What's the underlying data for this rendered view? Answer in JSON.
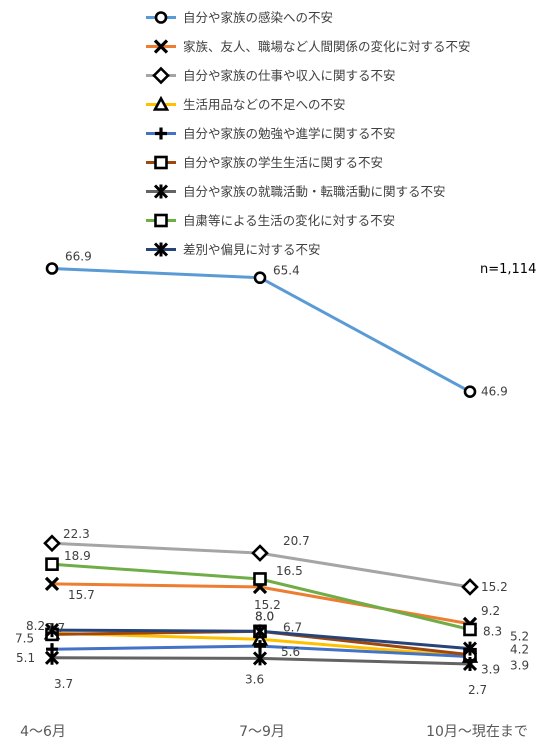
{
  "chart_data": {
    "type": "line",
    "categories": [
      "4～6月",
      "7～9月",
      "10月～現在まで"
    ],
    "note": "n=1,114",
    "series": [
      {
        "name": "自分や家族の感染への不安",
        "values": [
          66.9,
          65.4,
          46.9
        ],
        "color": "#5B9BD5",
        "marker": "circle"
      },
      {
        "name": "家族、友人、職場など人間関係の変化に対する不安",
        "values": [
          15.7,
          15.2,
          9.2
        ],
        "color": "#ED7D31",
        "marker": "x"
      },
      {
        "name": "自分や家族の仕事や収入に関する不安",
        "values": [
          22.3,
          20.7,
          15.2
        ],
        "color": "#A5A5A5",
        "marker": "diamond"
      },
      {
        "name": "生活用品などの不足への不安",
        "values": [
          7.7,
          6.7,
          3.9
        ],
        "color": "#FFC000",
        "marker": "triangle"
      },
      {
        "name": "自分や家族の勉強や進学に関する不安",
        "values": [
          5.1,
          5.6,
          3.9
        ],
        "color": "#4472C4",
        "marker": "plus"
      },
      {
        "name": "自分や家族の学生生活に関する不安",
        "values": [
          7.5,
          8.0,
          4.2
        ],
        "color": "#9E480E",
        "marker": "square"
      },
      {
        "name": "自分や家族の就職活動・転職活動に関する不安",
        "values": [
          3.7,
          3.6,
          2.7
        ],
        "color": "#636363",
        "marker": "star"
      },
      {
        "name": "自粛等による生活の変化に対する不安",
        "values": [
          18.9,
          16.5,
          8.3
        ],
        "color": "#70AD47",
        "marker": "square"
      },
      {
        "name": "差別や偏見に対する不安",
        "values": [
          8.2,
          8.0,
          5.2
        ],
        "color": "#264478",
        "marker": "star"
      }
    ]
  }
}
